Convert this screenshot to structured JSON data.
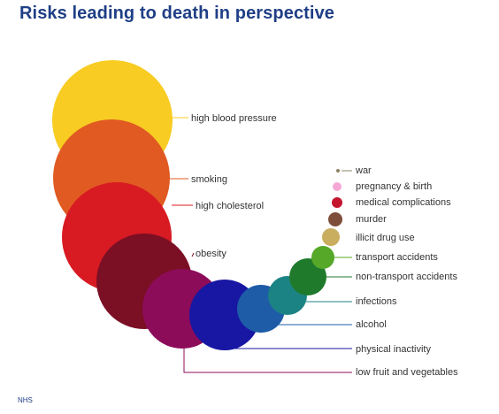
{
  "title": "Risks leading to death in perspective",
  "source": "NHS",
  "chart_data": {
    "type": "bubble",
    "title": "Risks leading to death in perspective",
    "legend_placement": "labels beside each bubble",
    "series": [
      {
        "name": "high blood pressure",
        "color": "#f8cc22",
        "relative_size": 68
      },
      {
        "name": "smoking",
        "color": "#e05a22",
        "relative_size": 66
      },
      {
        "name": "high cholesterol",
        "color": "#d81a22",
        "relative_size": 62
      },
      {
        "name": "obesity",
        "color": "#7b0f24",
        "relative_size": 54
      },
      {
        "name": "low fruit and vegetables",
        "color": "#8c0c5a",
        "relative_size": 45
      },
      {
        "name": "physical inactivity",
        "color": "#1717a3",
        "relative_size": 40
      },
      {
        "name": "alcohol",
        "color": "#1e5ca8",
        "relative_size": 27
      },
      {
        "name": "infections",
        "color": "#1c8384",
        "relative_size": 22
      },
      {
        "name": "non-transport accidents",
        "color": "#1f7a2b",
        "relative_size": 21
      },
      {
        "name": "transport accidents",
        "color": "#55a828",
        "relative_size": 13
      },
      {
        "name": "illicit drug use",
        "color": "#c9ae5f",
        "relative_size": 10
      },
      {
        "name": "murder",
        "color": "#7e4e3a",
        "relative_size": 8
      },
      {
        "name": "medical complications",
        "color": "#c4162f",
        "relative_size": 6
      },
      {
        "name": "pregnancy & birth",
        "color": "#f5a8d6",
        "relative_size": 5
      },
      {
        "name": "war",
        "color": "#8e8365",
        "relative_size": 2
      }
    ]
  }
}
